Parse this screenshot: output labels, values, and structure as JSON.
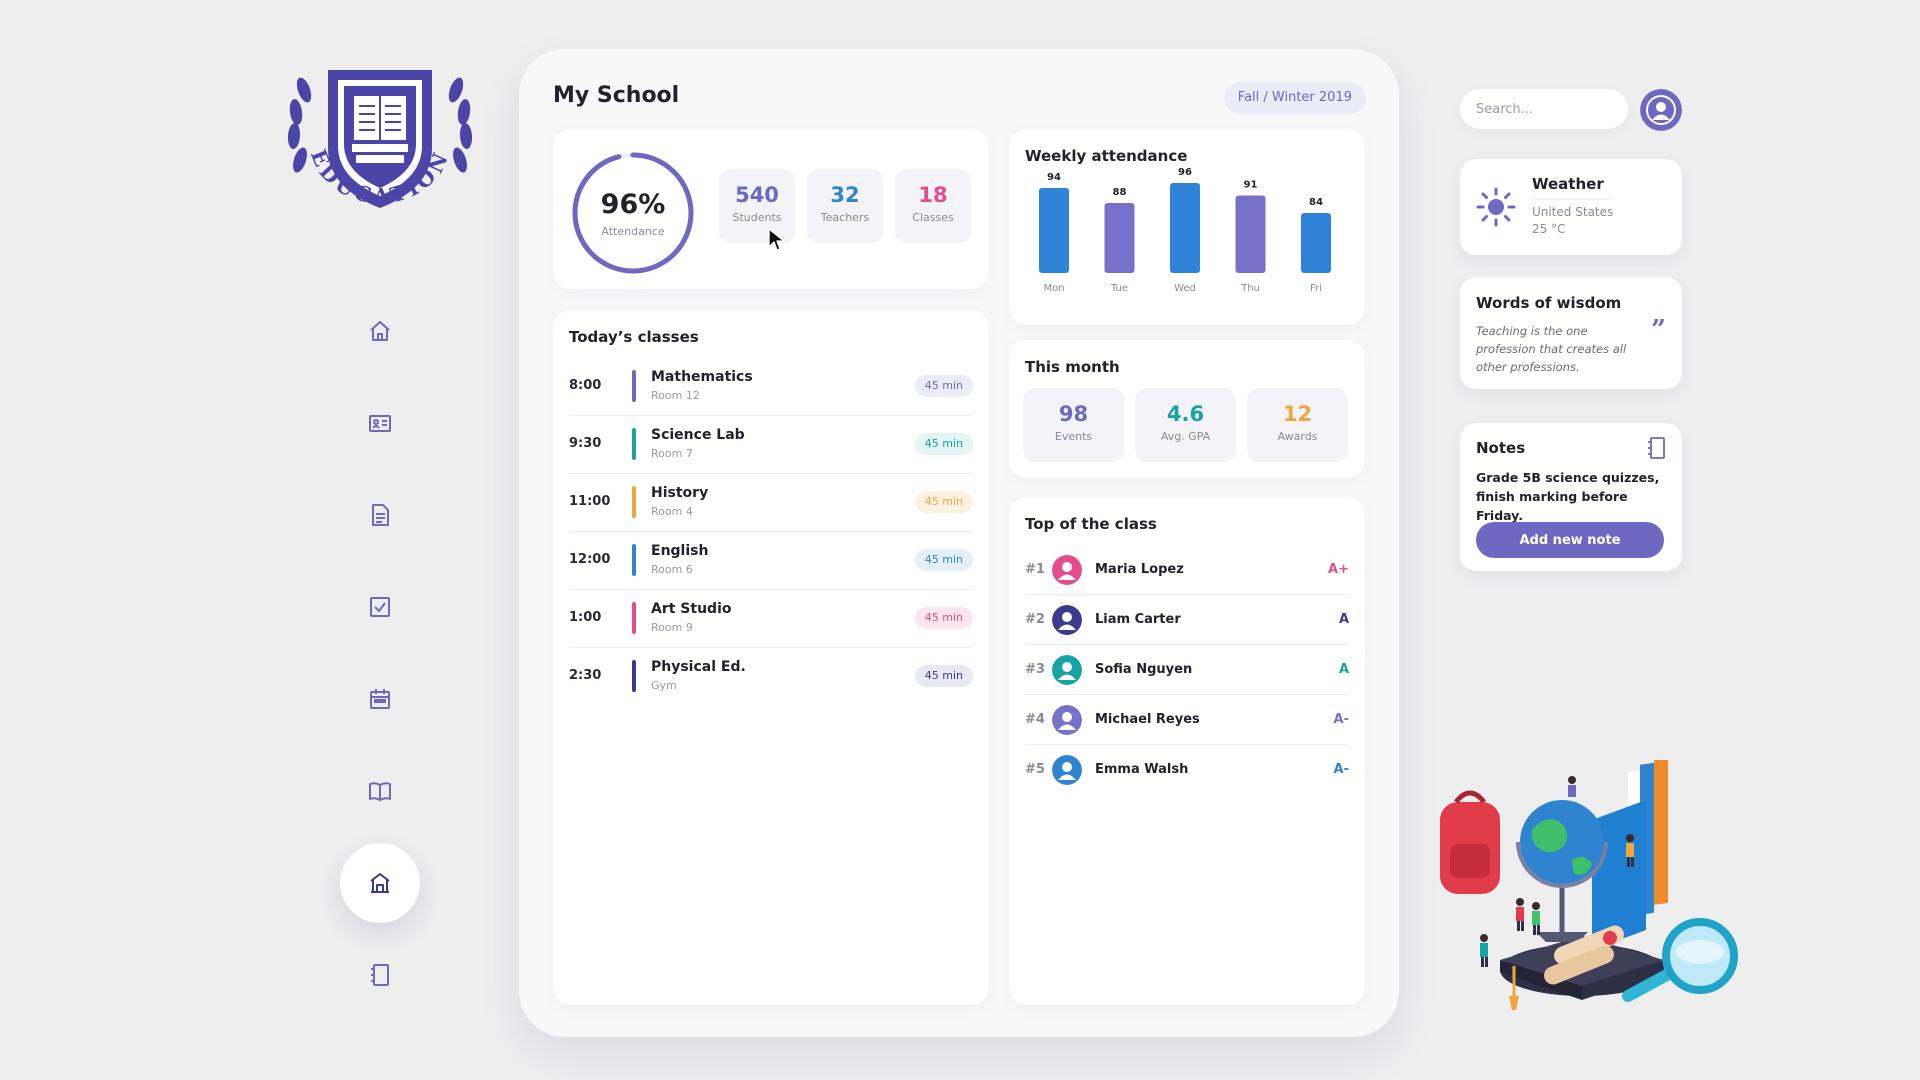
{
  "logo": {
    "text": "EDUCATION",
    "color": "#4a45a6"
  },
  "sidebar": {
    "items": [
      {
        "name": "home",
        "icon": "home-icon",
        "active": false
      },
      {
        "name": "id-card",
        "icon": "id-card-icon",
        "active": false
      },
      {
        "name": "document",
        "icon": "document-icon",
        "active": false
      },
      {
        "name": "checklist",
        "icon": "checkbox-icon",
        "active": false
      },
      {
        "name": "calendar",
        "icon": "calendar-icon",
        "active": false
      },
      {
        "name": "library",
        "icon": "book-icon",
        "active": false
      },
      {
        "name": "school",
        "icon": "school-icon",
        "active": true
      },
      {
        "name": "notebook",
        "icon": "notebook-icon",
        "active": false
      }
    ]
  },
  "header": {
    "title": "My School",
    "season": "Fall / Winter 2019"
  },
  "stats": {
    "attendance": {
      "value": "96%",
      "label": "Attendance",
      "fraction": 0.96
    },
    "tiles": [
      {
        "value": "540",
        "label": "Students",
        "color": "#6d68c2"
      },
      {
        "value": "32",
        "label": "Teachers",
        "color": "#2f84cf"
      },
      {
        "value": "18",
        "label": "Classes",
        "color": "#e54c8b"
      }
    ]
  },
  "classes": {
    "title": "Today’s classes",
    "items": [
      {
        "time": "8:00",
        "name": "Mathematics",
        "room": "Room 12",
        "duration": "45 min",
        "color": "#6d68c2",
        "tint": "#ececf7"
      },
      {
        "time": "9:30",
        "name": "Science Lab",
        "room": "Room 7",
        "duration": "45 min",
        "color": "#16a3a3",
        "tint": "#e3f4f4"
      },
      {
        "time": "11:00",
        "name": "History",
        "room": "Room 4",
        "duration": "45 min",
        "color": "#f0a63a",
        "tint": "#fcf2e2"
      },
      {
        "time": "12:00",
        "name": "English",
        "room": "Room 6",
        "duration": "45 min",
        "color": "#2f84cf",
        "tint": "#e4effa"
      },
      {
        "time": "1:00",
        "name": "Art Studio",
        "room": "Room 9",
        "duration": "45 min",
        "color": "#e54c8b",
        "tint": "#fbe6ef"
      },
      {
        "time": "2:30",
        "name": "Physical Ed.",
        "room": "Gym",
        "duration": "45 min",
        "color": "#3b3a8c",
        "tint": "#e9e9f2"
      }
    ]
  },
  "weekly": {
    "title": "Weekly attendance",
    "chart_data": {
      "type": "bar",
      "title": "Weekly attendance",
      "categories": [
        "Mon",
        "Tue",
        "Wed",
        "Thu",
        "Fri"
      ],
      "values": [
        94,
        88,
        96,
        91,
        84
      ],
      "colors": [
        "#2f84d9",
        "#7672c9",
        "#2f84d9",
        "#7672c9",
        "#2f84d9"
      ],
      "ylim": [
        60,
        100
      ],
      "grid": false
    }
  },
  "month": {
    "title": "This month",
    "tiles": [
      {
        "value": "98",
        "label": "Events",
        "color": "#6d68c2"
      },
      {
        "value": "4.6",
        "label": "Avg. GPA",
        "color": "#16a3a3"
      },
      {
        "value": "12",
        "label": "Awards",
        "color": "#f0a63a"
      }
    ]
  },
  "top": {
    "title": "Top of the class",
    "items": [
      {
        "rank": "#1",
        "name": "Maria Lopez",
        "grade": "A+",
        "color": "#e54c8b"
      },
      {
        "rank": "#2",
        "name": "Liam Carter",
        "grade": "A",
        "color": "#3b3a8c"
      },
      {
        "rank": "#3",
        "name": "Sofia Nguyen",
        "grade": "A",
        "color": "#16a3a3"
      },
      {
        "rank": "#4",
        "name": "Michael Reyes",
        "grade": "A-",
        "color": "#7672c9"
      },
      {
        "rank": "#5",
        "name": "Emma Walsh",
        "grade": "A-",
        "color": "#2f84cf"
      }
    ]
  },
  "search": {
    "placeholder": "Search..."
  },
  "weather": {
    "title": "Weather",
    "location": "United States",
    "temperature": "25 °C"
  },
  "wisdom": {
    "title": "Words of wisdom",
    "quote": "Teaching is the one profession that creates all other professions."
  },
  "notes": {
    "title": "Notes",
    "text": "Grade 5B science quizzes, finish marking before Friday.",
    "button": "Add new note"
  },
  "colors": {
    "accent": "#6d68c2",
    "brand": "#4a45a6",
    "background": "#eeeeef"
  }
}
